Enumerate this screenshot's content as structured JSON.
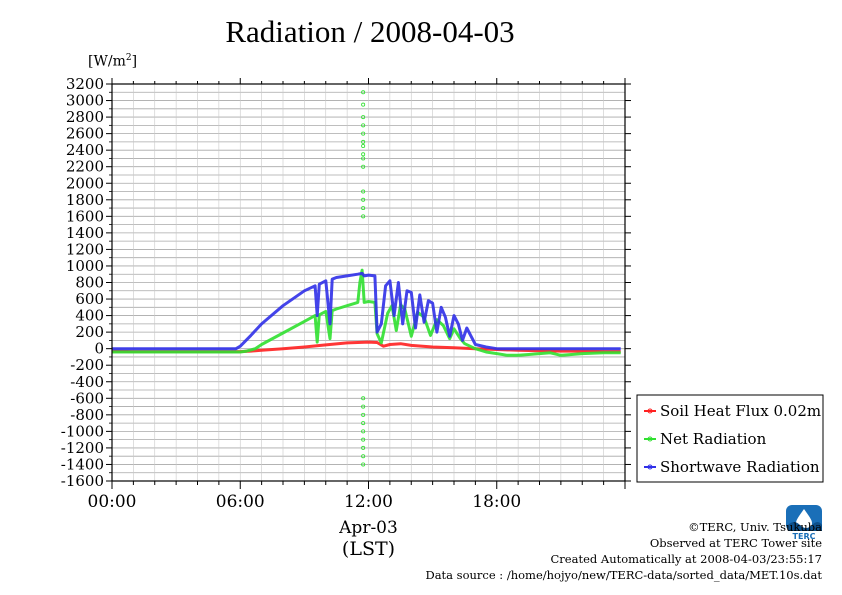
{
  "chart_data": {
    "type": "line",
    "title": "Radiation / 2008-04-03",
    "ylabel_unit": "[W/m",
    "ylabel_unit_sup": "2",
    "ylabel_unit_close": "]",
    "ylim": [
      -1600,
      3200
    ],
    "y_ticks": [
      3200,
      3000,
      2800,
      2600,
      2400,
      2200,
      2000,
      1800,
      1600,
      1400,
      1200,
      1000,
      800,
      600,
      400,
      200,
      0,
      -200,
      -400,
      -600,
      -800,
      -1000,
      -1200,
      -1400,
      -1600
    ],
    "xlim": [
      0,
      24
    ],
    "x_ticks": [
      {
        "value": 0,
        "label": "00:00"
      },
      {
        "value": 6,
        "label": "06:00"
      },
      {
        "value": 12,
        "label": "12:00"
      },
      {
        "value": 18,
        "label": "18:00"
      }
    ],
    "xlabel_date": "Apr-03",
    "xlabel_unit": "(LST)",
    "grid": true,
    "legend_position": "right",
    "series": [
      {
        "name": "Soil Heat Flux 0.02m",
        "color": "#ff2020",
        "x": [
          0,
          1,
          2,
          3,
          4,
          5,
          6,
          6.5,
          7,
          8,
          9,
          10,
          11,
          11.5,
          12,
          12.4,
          12.7,
          13,
          13.5,
          14,
          15,
          16,
          17,
          18,
          19,
          20,
          21,
          22,
          23,
          23.8
        ],
        "y": [
          -30,
          -35,
          -35,
          -35,
          -35,
          -35,
          -35,
          -30,
          -20,
          0,
          20,
          45,
          70,
          75,
          80,
          75,
          30,
          50,
          60,
          40,
          20,
          10,
          0,
          -10,
          -20,
          -25,
          -30,
          -30,
          -35,
          -35
        ]
      },
      {
        "name": "Net Radiation",
        "color": "#30e030",
        "x": [
          0,
          1,
          2,
          3,
          4,
          5,
          6,
          6.3,
          6.7,
          7,
          8,
          9,
          9.5,
          9.6,
          9.7,
          10,
          10.2,
          10.3,
          10.5,
          11,
          11.5,
          11.6,
          11.7,
          11.8,
          12,
          12.3,
          12.4,
          12.6,
          12.9,
          13.1,
          13.3,
          13.5,
          13.7,
          14,
          14.3,
          14.6,
          14.9,
          15.2,
          15.5,
          15.8,
          16,
          16.3,
          16.5,
          17,
          17.5,
          18,
          18.5,
          19,
          19.5,
          20,
          20.5,
          21,
          21.5,
          22,
          23,
          23.8
        ],
        "y": [
          -40,
          -40,
          -40,
          -40,
          -40,
          -40,
          -40,
          -30,
          0,
          50,
          190,
          330,
          400,
          80,
          410,
          450,
          120,
          460,
          480,
          520,
          560,
          800,
          950,
          560,
          570,
          560,
          180,
          70,
          430,
          520,
          220,
          530,
          480,
          150,
          440,
          380,
          160,
          350,
          280,
          120,
          240,
          120,
          60,
          0,
          -40,
          -60,
          -80,
          -80,
          -70,
          -60,
          -50,
          -80,
          -70,
          -60,
          -50,
          -50
        ]
      },
      {
        "name": "Shortwave Radiation",
        "color": "#3030e8",
        "x": [
          0,
          1,
          2,
          3,
          4,
          5,
          5.8,
          6,
          6.5,
          7,
          8,
          9,
          9.5,
          9.6,
          9.7,
          10,
          10.2,
          10.3,
          10.5,
          11,
          11.5,
          11.7,
          11.8,
          12,
          12.3,
          12.4,
          12.6,
          12.8,
          13,
          13.2,
          13.4,
          13.6,
          13.8,
          14,
          14.2,
          14.4,
          14.6,
          14.8,
          15,
          15.2,
          15.4,
          15.6,
          15.8,
          16,
          16.2,
          16.4,
          16.6,
          16.8,
          17,
          17.5,
          18,
          19,
          20,
          21,
          22,
          23,
          23.8
        ],
        "y": [
          0,
          0,
          0,
          0,
          0,
          0,
          0,
          30,
          160,
          300,
          520,
          700,
          760,
          400,
          780,
          820,
          300,
          840,
          860,
          880,
          900,
          910,
          880,
          890,
          880,
          200,
          300,
          760,
          820,
          400,
          800,
          300,
          700,
          680,
          250,
          650,
          320,
          580,
          550,
          200,
          500,
          380,
          150,
          400,
          300,
          100,
          250,
          150,
          50,
          20,
          0,
          0,
          0,
          0,
          0,
          0,
          0
        ]
      }
    ],
    "spike_markers": {
      "x": 11.75,
      "y": [
        3100,
        2950,
        2800,
        2700,
        2600,
        2500,
        2450,
        2350,
        2300,
        2200,
        1900,
        1800,
        1700,
        1600,
        -600,
        -700,
        -800,
        -900,
        -1000,
        -1100,
        -1200,
        -1300,
        -1400
      ]
    }
  },
  "footer": {
    "copyright": "©TERC, Univ. Tsukuba",
    "observed": "Observed at TERC Tower site",
    "created": "Created Automatically at 2008-04-03/23:55:17",
    "source": "Data source : /home/hojyo/new/TERC-data/sorted_data/MET.10s.dat"
  },
  "logo": {
    "text": "TERC",
    "color": "#1a6fb8"
  }
}
